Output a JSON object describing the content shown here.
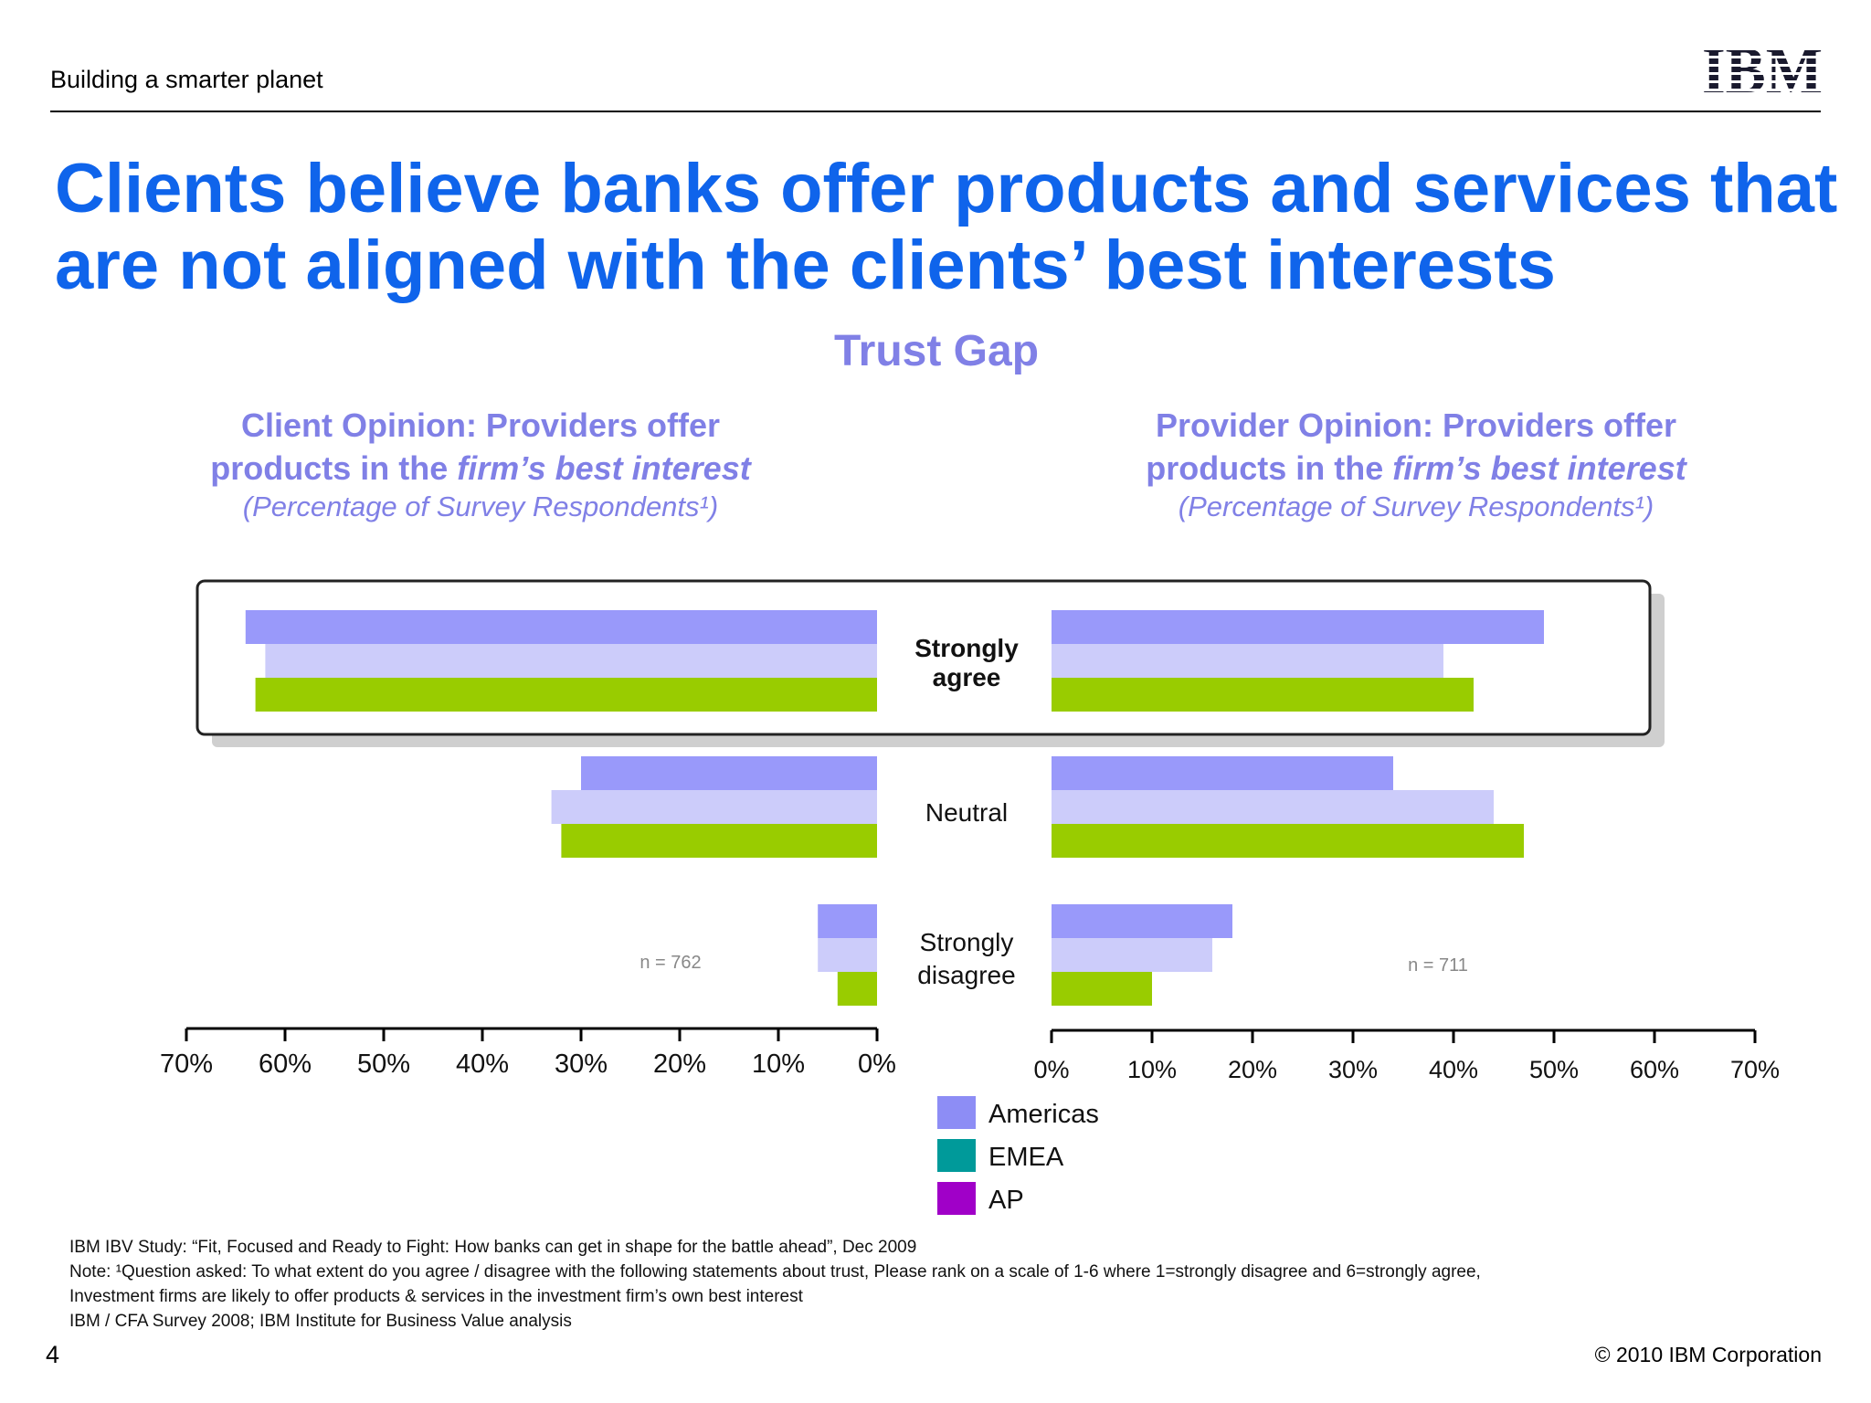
{
  "header": {
    "tagline": "Building a smarter planet",
    "logo_text": "IBM",
    "title": "Clients believe banks offer products and services that are not aligned with the clients’ best interests"
  },
  "chart_data": {
    "type": "bar",
    "orientation": "horizontal-butterfly",
    "title": "Trust Gap",
    "categories": [
      "Strongly agree",
      "Neutral",
      "Strongly disagree"
    ],
    "highlighted_category": "Strongly agree",
    "legend": [
      "Americas",
      "EMEA",
      "AP"
    ],
    "legend_colors": [
      "#8d8df5",
      "#009a9a",
      "#a000c8"
    ],
    "panels": [
      {
        "side": "left",
        "title_line1": "Client Opinion: Providers offer",
        "title_line2_pre": "products in the ",
        "title_line2_em": "firm’s best interest",
        "subtitle": "(Percentage of Survey Respondents¹)",
        "n_label": "n = 762",
        "xlim": [
          0,
          70
        ],
        "ticks": [
          "70%",
          "60%",
          "50%",
          "40%",
          "30%",
          "20%",
          "10%",
          "0%"
        ],
        "series": [
          {
            "name": "Americas",
            "values": [
              64,
              30,
              6
            ]
          },
          {
            "name": "EMEA",
            "values": [
              62,
              33,
              6
            ]
          },
          {
            "name": "AP",
            "values": [
              63,
              32,
              4
            ]
          }
        ]
      },
      {
        "side": "right",
        "title_line1": "Provider Opinion: Providers offer",
        "title_line2_pre": "products in the ",
        "title_line2_em": "firm’s best interest",
        "subtitle": "(Percentage of Survey Respondents¹)",
        "n_label": "n = 711",
        "xlim": [
          0,
          70
        ],
        "ticks": [
          "0%",
          "10%",
          "20%",
          "30%",
          "40%",
          "50%",
          "60%",
          "70%"
        ],
        "series": [
          {
            "name": "Americas",
            "values": [
              49,
              34,
              18
            ]
          },
          {
            "name": "EMEA",
            "values": [
              39,
              44,
              16
            ]
          },
          {
            "name": "AP",
            "values": [
              42,
              47,
              10
            ]
          }
        ]
      }
    ],
    "bar_colors": [
      "#9999fa",
      "#ccccfa",
      "#99cc00"
    ]
  },
  "footnotes": [
    "IBM IBV Study: “Fit, Focused and Ready to Fight: How banks can get in shape for the battle ahead”, Dec 2009",
    "Note: ¹Question asked: To what extent do you agree / disagree with the following statements about trust, Please rank on a scale of 1-6 where 1=strongly disagree and 6=strongly agree,",
    "Investment firms are likely to offer products & services in the investment firm’s own best interest",
    "IBM / CFA Survey 2008; IBM Institute for Business Value analysis"
  ],
  "footer": {
    "page_number": "4",
    "copyright": "© 2010 IBM Corporation"
  }
}
